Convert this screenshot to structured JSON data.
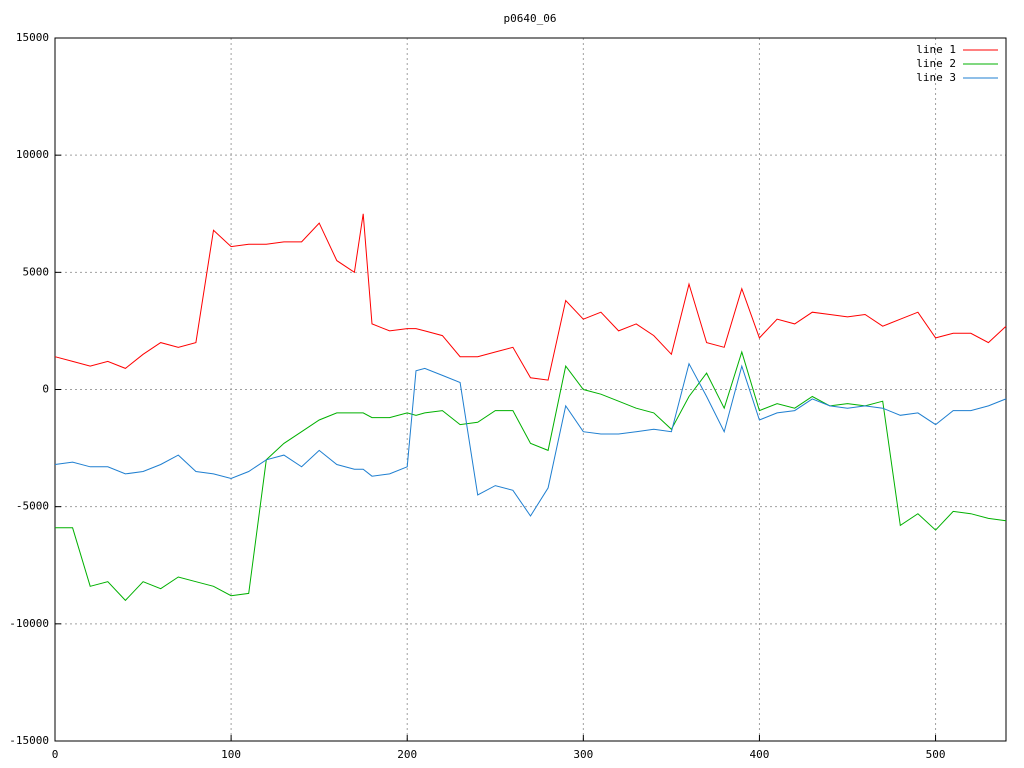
{
  "chart_data": {
    "type": "line",
    "title": "p0640_06",
    "x": [
      0,
      10,
      20,
      30,
      40,
      50,
      60,
      70,
      80,
      90,
      100,
      110,
      120,
      130,
      140,
      150,
      160,
      170,
      175,
      180,
      190,
      200,
      205,
      210,
      220,
      230,
      240,
      250,
      260,
      270,
      280,
      290,
      300,
      310,
      320,
      330,
      340,
      350,
      360,
      370,
      380,
      390,
      400,
      410,
      420,
      430,
      440,
      450,
      460,
      470,
      480,
      490,
      500,
      510,
      520,
      530,
      540
    ],
    "series": [
      {
        "name": "line 1",
        "color": "#ff0000",
        "values": [
          1400,
          1200,
          1000,
          1200,
          900,
          1500,
          2000,
          1800,
          2000,
          6800,
          6100,
          6200,
          6200,
          6300,
          6300,
          7100,
          5500,
          5000,
          7500,
          2800,
          2500,
          2600,
          2600,
          2500,
          2300,
          1400,
          1400,
          1600,
          1800,
          500,
          400,
          3800,
          3000,
          3300,
          2500,
          2800,
          2300,
          1500,
          4500,
          2000,
          1800,
          4300,
          2200,
          3000,
          2800,
          3300,
          3200,
          3100,
          3200,
          2700,
          3000,
          3300,
          2200,
          2400,
          2400,
          2000,
          2700
        ]
      },
      {
        "name": "line 2",
        "color": "#00b000",
        "values": [
          -5900,
          -5900,
          -8400,
          -8200,
          -9000,
          -8200,
          -8500,
          -8000,
          -8200,
          -8400,
          -8800,
          -8700,
          -3000,
          -2300,
          -1800,
          -1300,
          -1000,
          -1000,
          -1000,
          -1200,
          -1200,
          -1000,
          -1100,
          -1000,
          -900,
          -1500,
          -1400,
          -900,
          -900,
          -2300,
          -2600,
          1000,
          0,
          -200,
          -500,
          -800,
          -1000,
          -1700,
          -300,
          700,
          -800,
          1600,
          -900,
          -600,
          -800,
          -300,
          -700,
          -600,
          -700,
          -500,
          -5800,
          -5300,
          -6000,
          -5200,
          -5300,
          -5500,
          -5600
        ]
      },
      {
        "name": "line 3",
        "color": "#1f7fd0",
        "values": [
          -3200,
          -3100,
          -3300,
          -3300,
          -3600,
          -3500,
          -3200,
          -2800,
          -3500,
          -3600,
          -3800,
          -3500,
          -3000,
          -2800,
          -3300,
          -2600,
          -3200,
          -3400,
          -3400,
          -3700,
          -3600,
          -3300,
          800,
          900,
          600,
          300,
          -4500,
          -4100,
          -4300,
          -5400,
          -4200,
          -700,
          -1800,
          -1900,
          -1900,
          -1800,
          -1700,
          -1800,
          1100,
          -300,
          -1800,
          1000,
          -1300,
          -1000,
          -900,
          -400,
          -700,
          -800,
          -700,
          -800,
          -1100,
          -1000,
          -1500,
          -900,
          -900,
          -700,
          -400
        ]
      }
    ],
    "xlim": [
      0,
      540
    ],
    "xticks": [
      0,
      100,
      200,
      300,
      400,
      500
    ],
    "ylim": [
      -15000,
      15000
    ],
    "yticks": [
      -15000,
      -10000,
      -5000,
      0,
      5000,
      10000,
      15000
    ],
    "grid": true,
    "legend": "top-right"
  }
}
